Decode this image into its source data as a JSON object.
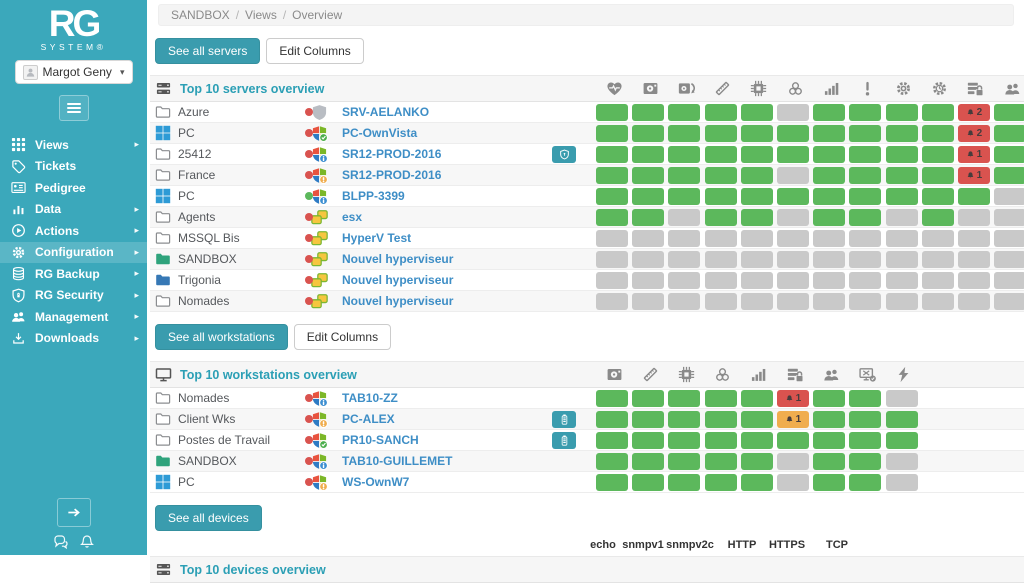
{
  "colors": {
    "sidebar_teal": "#3BA8BB",
    "button_teal": "#3A9CAE",
    "title_teal": "#2B9FB5",
    "cell_green": "#5CB85C",
    "cell_gray": "#C9C9C9",
    "badge_red": "#D9534F",
    "badge_orange": "#F0AD4E",
    "link_blue": "#3E8EC6"
  },
  "sidebar": {
    "brand_title": "RG",
    "brand_subtitle": "SYSTEM®",
    "user_name": "Margot Geny",
    "items": [
      {
        "label": "Views",
        "icon": "grid-icon",
        "arrow": true,
        "active": false
      },
      {
        "label": "Tickets",
        "icon": "tags-icon",
        "arrow": false,
        "active": false
      },
      {
        "label": "Pedigree",
        "icon": "idcard-icon",
        "arrow": false,
        "active": false
      },
      {
        "label": "Data",
        "icon": "chart-icon",
        "arrow": true,
        "active": false
      },
      {
        "label": "Actions",
        "icon": "play-icon",
        "arrow": true,
        "active": false
      },
      {
        "label": "Configuration",
        "icon": "gear-icon",
        "arrow": true,
        "active": true
      },
      {
        "label": "RG Backup",
        "icon": "database-icon",
        "arrow": true,
        "active": false
      },
      {
        "label": "RG Security",
        "icon": "shield-icon",
        "arrow": true,
        "active": false
      },
      {
        "label": "Management",
        "icon": "users-icon",
        "arrow": true,
        "active": false
      },
      {
        "label": "Downloads",
        "icon": "download-icon",
        "arrow": true,
        "active": false
      }
    ]
  },
  "breadcrumb": {
    "items": [
      "SANDBOX",
      "Views",
      "Overview"
    ],
    "separator": "/"
  },
  "servers": {
    "see_all": "See all servers",
    "edit_columns": "Edit Columns",
    "title": "Top 10 servers overview",
    "columns": [
      "heartbeat",
      "disk",
      "disk-sync",
      "ram",
      "cpu",
      "antivirus",
      "processes",
      "alerts",
      "services",
      "scheduled-tasks",
      "security",
      "sessions"
    ],
    "rows": [
      {
        "group": "Azure",
        "group_icon": "folder-gray",
        "status": "red",
        "os": "shield-gray",
        "device": "SRV-AELANKO",
        "action": null,
        "cells": [
          "green",
          "green",
          "green",
          "green",
          "green",
          "gray",
          "green",
          "green",
          "green",
          "green",
          "red:2",
          "green"
        ]
      },
      {
        "group": "PC",
        "group_icon": "windows",
        "status": "red",
        "os": "win-check",
        "device": "PC-OwnVista",
        "action": null,
        "cells": [
          "green",
          "green",
          "green",
          "green",
          "green",
          "green",
          "green",
          "green",
          "green",
          "green",
          "red:2",
          "green"
        ]
      },
      {
        "group": "25412",
        "group_icon": "folder-gray",
        "status": "red",
        "os": "win-info",
        "device": "SR12-PROD-2016",
        "action": "security-shield",
        "cells": [
          "green",
          "green",
          "green",
          "green",
          "green",
          "green",
          "green",
          "green",
          "green",
          "green",
          "red:1",
          "green"
        ]
      },
      {
        "group": "France",
        "group_icon": "folder-gray",
        "status": "red",
        "os": "win-warn",
        "device": "SR12-PROD-2016",
        "action": null,
        "cells": [
          "green",
          "green",
          "green",
          "green",
          "green",
          "gray",
          "green",
          "green",
          "green",
          "green",
          "red:1",
          "green"
        ]
      },
      {
        "group": "PC",
        "group_icon": "windows",
        "status": "green",
        "os": "win-info",
        "device": "BLPP-3399",
        "action": null,
        "cells": [
          "green",
          "green",
          "green",
          "green",
          "green",
          "green",
          "green",
          "green",
          "green",
          "green",
          "green",
          "gray"
        ]
      },
      {
        "group": "Agents",
        "group_icon": "folder-gray",
        "status": "red",
        "os": "vmware",
        "device": "esx",
        "action": null,
        "cells": [
          "green",
          "green",
          "gray",
          "green",
          "green",
          "gray",
          "green",
          "green",
          "gray",
          "green",
          "gray",
          "gray"
        ]
      },
      {
        "group": "MSSQL Bis",
        "group_icon": "folder-gray",
        "status": "red",
        "os": "vmware",
        "device": "HyperV Test",
        "action": null,
        "cells": [
          "gray",
          "gray",
          "gray",
          "gray",
          "gray",
          "gray",
          "gray",
          "gray",
          "gray",
          "gray",
          "gray",
          "gray"
        ]
      },
      {
        "group": "SANDBOX",
        "group_icon": "folder-green",
        "status": "red",
        "os": "vmware",
        "device": "Nouvel hyperviseur",
        "action": null,
        "cells": [
          "gray",
          "gray",
          "gray",
          "gray",
          "gray",
          "gray",
          "gray",
          "gray",
          "gray",
          "gray",
          "gray",
          "gray"
        ]
      },
      {
        "group": "Trigonia",
        "group_icon": "folder-blue",
        "status": "red",
        "os": "vmware",
        "device": "Nouvel hyperviseur",
        "action": null,
        "cells": [
          "gray",
          "gray",
          "gray",
          "gray",
          "gray",
          "gray",
          "gray",
          "gray",
          "gray",
          "gray",
          "gray",
          "gray"
        ]
      },
      {
        "group": "Nomades",
        "group_icon": "folder-gray",
        "status": "red",
        "os": "vmware",
        "device": "Nouvel hyperviseur",
        "action": null,
        "cells": [
          "gray",
          "gray",
          "gray",
          "gray",
          "gray",
          "gray",
          "gray",
          "gray",
          "gray",
          "gray",
          "gray",
          "gray"
        ]
      }
    ]
  },
  "workstations": {
    "see_all": "See all workstations",
    "edit_columns": "Edit Columns",
    "title": "Top 10 workstations overview",
    "columns": [
      "disk",
      "ram",
      "cpu",
      "antivirus",
      "processes",
      "security",
      "sessions",
      "screen",
      "power"
    ],
    "rows": [
      {
        "group": "Nomades",
        "group_icon": "folder-gray",
        "status": "red",
        "os": "win-info",
        "device": "TAB10-ZZ",
        "action": null,
        "cells": [
          "green",
          "green",
          "green",
          "green",
          "green",
          "red:1",
          "green",
          "green",
          "gray"
        ]
      },
      {
        "group": "Client Wks",
        "group_icon": "folder-gray",
        "status": "red",
        "os": "win-warn",
        "device": "PC-ALEX",
        "action": "battery",
        "cells": [
          "green",
          "green",
          "green",
          "green",
          "green",
          "orange:1",
          "green",
          "green",
          "green"
        ]
      },
      {
        "group": "Postes de Travail",
        "group_icon": "folder-gray",
        "status": "red",
        "os": "win-check",
        "device": "PR10-SANCH",
        "action": "battery",
        "cells": [
          "green",
          "green",
          "green",
          "green",
          "green",
          "green",
          "green",
          "green",
          "green"
        ]
      },
      {
        "group": "SANDBOX",
        "group_icon": "folder-green",
        "status": "red",
        "os": "win-info",
        "device": "TAB10-GUILLEMET",
        "action": null,
        "cells": [
          "green",
          "green",
          "green",
          "green",
          "green",
          "gray",
          "green",
          "green",
          "gray"
        ]
      },
      {
        "group": "PC",
        "group_icon": "windows",
        "status": "red",
        "os": "win-warn",
        "device": "WS-OwnW7",
        "action": null,
        "cells": [
          "green",
          "green",
          "green",
          "green",
          "green",
          "gray",
          "green",
          "green",
          "gray"
        ]
      }
    ]
  },
  "devices": {
    "see_all": "See all devices",
    "title": "Top 10 devices overview",
    "columns": [
      "echo",
      "snmpv1",
      "snmpv2c",
      "HTTP",
      "HTTPS",
      "TCP"
    ]
  }
}
